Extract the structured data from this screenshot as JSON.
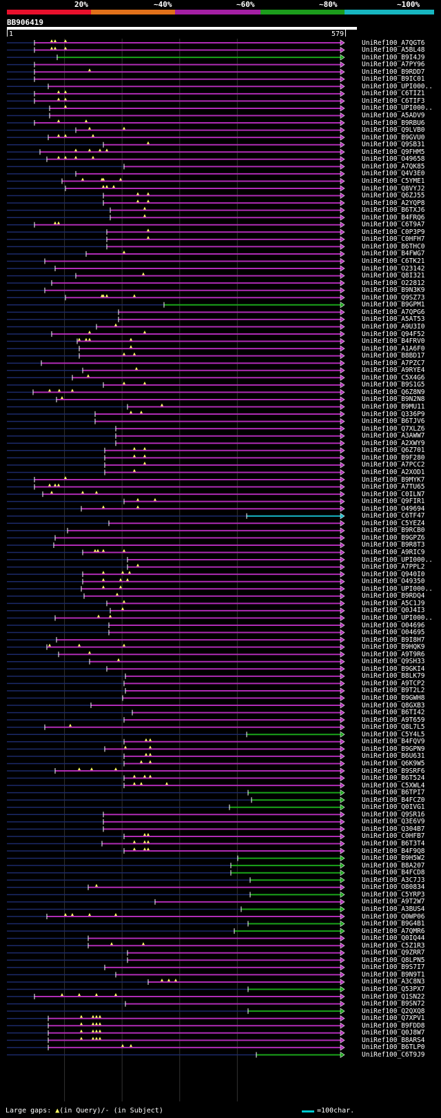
{
  "legend": {
    "labels": [
      "20%",
      "~40%",
      "~60%",
      "~80%",
      "~100%"
    ],
    "colors": [
      "#e8102c",
      "#e0701a",
      "#a31fa3",
      "#1c9c1c",
      "#17b6c0"
    ]
  },
  "query": {
    "title": "BB906419",
    "start_label": "1",
    "end_label": "579",
    "length": 579
  },
  "colors": {
    "magenta": "#b02cb6",
    "green": "#1aa51a",
    "cyan": "#18b8c8",
    "navy": "#1c2a6a",
    "gap": "#ffff66"
  },
  "hits": [
    {
      "id": "UniRef100_A7QGT6",
      "start": 50,
      "color": "magenta",
      "gaps": [
        75,
        80,
        95
      ]
    },
    {
      "id": "UniRef100_A5BL48",
      "start": 50,
      "color": "magenta",
      "gaps": [
        75,
        80,
        95
      ]
    },
    {
      "id": "UniRef100_B9I4J9",
      "start": 83,
      "color": "green",
      "gaps": []
    },
    {
      "id": "UniRef100_A7PY96",
      "start": 50,
      "color": "magenta",
      "gaps": []
    },
    {
      "id": "UniRef100_B9RDD7",
      "start": 50,
      "color": "magenta",
      "gaps": [
        130
      ]
    },
    {
      "id": "UniRef100_B9IC01",
      "start": 50,
      "color": "magenta",
      "gaps": []
    },
    {
      "id": "UniRef100_UPI000..",
      "start": 70,
      "color": "magenta",
      "gaps": []
    },
    {
      "id": "UniRef100_C6TIZ1",
      "start": 50,
      "color": "magenta",
      "gaps": [
        85,
        95
      ]
    },
    {
      "id": "UniRef100_C6TIF3",
      "start": 50,
      "color": "magenta",
      "gaps": [
        85,
        95
      ]
    },
    {
      "id": "UniRef100_UPI000..",
      "start": 72,
      "color": "magenta",
      "gaps": [
        95
      ]
    },
    {
      "id": "UniRef100_A5ADV9",
      "start": 72,
      "color": "magenta",
      "gaps": []
    },
    {
      "id": "UniRef100_B9RBU6",
      "start": 50,
      "color": "magenta",
      "gaps": [
        85,
        125
      ]
    },
    {
      "id": "UniRef100_Q9LVB0",
      "start": 110,
      "color": "magenta",
      "gaps": [
        130,
        180
      ]
    },
    {
      "id": "UniRef100_B9GVU0",
      "start": 70,
      "color": "magenta",
      "gaps": [
        85,
        95,
        135
      ]
    },
    {
      "id": "UniRef100_Q9SB31",
      "start": 150,
      "color": "magenta",
      "gaps": [
        215
      ]
    },
    {
      "id": "UniRef100_Q9FHM5",
      "start": 58,
      "color": "magenta",
      "gaps": [
        110,
        130,
        145,
        155
      ]
    },
    {
      "id": "UniRef100_O49658",
      "start": 68,
      "color": "magenta",
      "gaps": [
        85,
        95,
        110,
        135
      ]
    },
    {
      "id": "UniRef100_A7QK85",
      "start": 180,
      "color": "magenta",
      "gaps": []
    },
    {
      "id": "UniRef100_Q4V3E0",
      "start": 110,
      "color": "magenta",
      "gaps": []
    },
    {
      "id": "UniRef100_C5YME1",
      "start": 90,
      "color": "magenta",
      "gaps": [
        120,
        148,
        150,
        175
      ]
    },
    {
      "id": "UniRef100_Q8VYJ2",
      "start": 95,
      "color": "magenta",
      "gaps": [
        150,
        155,
        165
      ]
    },
    {
      "id": "UniRef100_Q6ZJ55",
      "start": 150,
      "color": "magenta",
      "gaps": [
        200,
        215
      ]
    },
    {
      "id": "UniRef100_A2YQP8",
      "start": 150,
      "color": "magenta",
      "gaps": [
        200,
        215
      ]
    },
    {
      "id": "UniRef100_B6TXJ6",
      "start": 160,
      "color": "magenta",
      "gaps": [
        210
      ]
    },
    {
      "id": "UniRef100_B4FRQ6",
      "start": 160,
      "color": "magenta",
      "gaps": [
        210
      ]
    },
    {
      "id": "UniRef100_C6T9A7",
      "start": 50,
      "color": "magenta",
      "gaps": [
        80,
        85
      ]
    },
    {
      "id": "UniRef100_C0P3P9",
      "start": 155,
      "color": "magenta",
      "gaps": [
        215
      ]
    },
    {
      "id": "UniRef100_C0HFH7",
      "start": 155,
      "color": "magenta",
      "gaps": [
        215
      ]
    },
    {
      "id": "UniRef100_B6THC0",
      "start": 155,
      "color": "magenta",
      "gaps": []
    },
    {
      "id": "UniRef100_B4FWG7",
      "start": 125,
      "color": "magenta",
      "gaps": [
        180
      ]
    },
    {
      "id": "UniRef100_C6TK21",
      "start": 65,
      "color": "magenta",
      "gaps": []
    },
    {
      "id": "UniRef100_O23142",
      "start": 80,
      "color": "magenta",
      "gaps": []
    },
    {
      "id": "UniRef100_Q8I321",
      "start": 110,
      "color": "magenta",
      "gaps": [
        208
      ]
    },
    {
      "id": "UniRef100_O22812",
      "start": 75,
      "color": "magenta",
      "gaps": []
    },
    {
      "id": "UniRef100_B9N3K9",
      "start": 65,
      "color": "magenta",
      "gaps": []
    },
    {
      "id": "UniRef100_Q9SZ73",
      "start": 95,
      "color": "magenta",
      "gaps": [
        148,
        150,
        155,
        195
      ]
    },
    {
      "id": "UniRef100_B9GPM1",
      "start": 238,
      "color": "green",
      "gaps": []
    },
    {
      "id": "UniRef100_A7QPG6",
      "start": 172,
      "color": "magenta",
      "gaps": []
    },
    {
      "id": "UniRef100_A5AT53",
      "start": 172,
      "color": "magenta",
      "gaps": []
    },
    {
      "id": "UniRef100_A9U3I0",
      "start": 140,
      "color": "magenta",
      "gaps": [
        168
      ]
    },
    {
      "id": "UniRef100_Q94F52",
      "start": 75,
      "color": "magenta",
      "gaps": [
        130,
        210
      ]
    },
    {
      "id": "UniRef100_B4FRV0",
      "start": 112,
      "color": "magenta",
      "gaps": [
        115,
        125,
        130,
        190
      ]
    },
    {
      "id": "UniRef100_A1A6F0",
      "start": 115,
      "color": "magenta",
      "gaps": [
        190
      ]
    },
    {
      "id": "UniRef100_B8BD17",
      "start": 115,
      "color": "magenta",
      "gaps": [
        180,
        195
      ]
    },
    {
      "id": "UniRef100_A7PZC7",
      "start": 60,
      "color": "magenta",
      "gaps": []
    },
    {
      "id": "UniRef100_A9RYE4",
      "start": 120,
      "color": "magenta",
      "gaps": [
        198
      ]
    },
    {
      "id": "UniRef100_C5X4G6",
      "start": 105,
      "color": "magenta",
      "gaps": [
        128
      ]
    },
    {
      "id": "UniRef100_B9S1G5",
      "start": 150,
      "color": "magenta",
      "gaps": [
        180,
        210
      ]
    },
    {
      "id": "UniRef100_Q6Z8N9",
      "start": 48,
      "color": "magenta",
      "gaps": [
        72,
        86,
        105
      ]
    },
    {
      "id": "UniRef100_B9N2N8",
      "start": 82,
      "color": "magenta",
      "gaps": [
        90
      ]
    },
    {
      "id": "UniRef100_B9MU11",
      "start": 185,
      "color": "magenta",
      "gaps": [
        235
      ]
    },
    {
      "id": "UniRef100_Q336P9",
      "start": 138,
      "color": "magenta",
      "gaps": [
        190,
        205
      ]
    },
    {
      "id": "UniRef100_B6TJV6",
      "start": 138,
      "color": "magenta",
      "gaps": []
    },
    {
      "id": "UniRef100_Q7XLZ6",
      "start": 168,
      "color": "magenta",
      "gaps": []
    },
    {
      "id": "UniRef100_A3AWW7",
      "start": 168,
      "color": "magenta",
      "gaps": []
    },
    {
      "id": "UniRef100_A2XWY9",
      "start": 168,
      "color": "magenta",
      "gaps": []
    },
    {
      "id": "UniRef100_Q6Z701",
      "start": 152,
      "color": "magenta",
      "gaps": [
        195,
        210
      ]
    },
    {
      "id": "UniRef100_B9F280",
      "start": 152,
      "color": "magenta",
      "gaps": [
        195,
        210
      ]
    },
    {
      "id": "UniRef100_A7PCC2",
      "start": 152,
      "color": "magenta",
      "gaps": [
        210
      ]
    },
    {
      "id": "UniRef100_A2XOD1",
      "start": 152,
      "color": "magenta",
      "gaps": [
        195
      ]
    },
    {
      "id": "UniRef100_B9MYK7",
      "start": 50,
      "color": "magenta",
      "gaps": [
        95
      ]
    },
    {
      "id": "UniRef100_A7TU65",
      "start": 50,
      "color": "magenta",
      "gaps": [
        72,
        80,
        85
      ]
    },
    {
      "id": "UniRef100_C0ILN7",
      "start": 62,
      "color": "magenta",
      "gaps": [
        75,
        120,
        140
      ]
    },
    {
      "id": "UniRef100_Q9FIR1",
      "start": 180,
      "color": "magenta",
      "gaps": [
        200,
        225
      ]
    },
    {
      "id": "UniRef100_O49694",
      "start": 118,
      "color": "magenta",
      "gaps": [
        150,
        200
      ]
    },
    {
      "id": "UniRef100_C6TF47",
      "start": 358,
      "color": "cyan",
      "gaps": []
    },
    {
      "id": "UniRef100_C5YEZ4",
      "start": 158,
      "color": "magenta",
      "gaps": []
    },
    {
      "id": "UniRef100_B9RCB0",
      "start": 98,
      "color": "magenta",
      "gaps": []
    },
    {
      "id": "UniRef100_B9GPZ6",
      "start": 80,
      "color": "magenta",
      "gaps": []
    },
    {
      "id": "UniRef100_B9R8T3",
      "start": 78,
      "color": "magenta",
      "gaps": []
    },
    {
      "id": "UniRef100_A9RIC9",
      "start": 120,
      "color": "magenta",
      "gaps": [
        138,
        142,
        150,
        180
      ]
    },
    {
      "id": "UniRef100_UPI000..",
      "start": 185,
      "color": "magenta",
      "gaps": []
    },
    {
      "id": "UniRef100_A7PPL2",
      "start": 185,
      "color": "magenta",
      "gaps": [
        200
      ]
    },
    {
      "id": "UniRef100_Q940I0",
      "start": 120,
      "color": "magenta",
      "gaps": [
        150,
        178,
        188
      ]
    },
    {
      "id": "UniRef100_O49350",
      "start": 120,
      "color": "magenta",
      "gaps": [
        150,
        175,
        185
      ]
    },
    {
      "id": "UniRef100_UPI000..",
      "start": 118,
      "color": "magenta",
      "gaps": [
        150,
        175
      ]
    },
    {
      "id": "UniRef100_B9RDQ4",
      "start": 122,
      "color": "magenta",
      "gaps": [
        170
      ]
    },
    {
      "id": "UniRef100_A5C1J9",
      "start": 155,
      "color": "magenta",
      "gaps": [
        180
      ]
    },
    {
      "id": "UniRef100_Q0J4I3",
      "start": 160,
      "color": "magenta",
      "gaps": [
        178
      ]
    },
    {
      "id": "UniRef100_UPI000..",
      "start": 80,
      "color": "magenta",
      "gaps": [
        143,
        160
      ]
    },
    {
      "id": "UniRef100_O04696",
      "start": 158,
      "color": "magenta",
      "gaps": []
    },
    {
      "id": "UniRef100_O04695",
      "start": 158,
      "color": "magenta",
      "gaps": []
    },
    {
      "id": "UniRef100_B9I8H7",
      "start": 82,
      "color": "magenta",
      "gaps": []
    },
    {
      "id": "UniRef100_B9HQK9",
      "start": 68,
      "color": "magenta",
      "gaps": [
        72,
        115,
        180
      ]
    },
    {
      "id": "UniRef100_A9T9R6",
      "start": 85,
      "color": "magenta",
      "gaps": [
        130
      ]
    },
    {
      "id": "UniRef100_Q9SH33",
      "start": 130,
      "color": "magenta",
      "gaps": [
        172
      ]
    },
    {
      "id": "UniRef100_B9GKI4",
      "start": 155,
      "color": "magenta",
      "gaps": []
    },
    {
      "id": "UniRef100_B8LK79",
      "start": 182,
      "color": "magenta",
      "gaps": []
    },
    {
      "id": "UniRef100_A9TCP2",
      "start": 180,
      "color": "magenta",
      "gaps": []
    },
    {
      "id": "UniRef100_B9T2L2",
      "start": 182,
      "color": "magenta",
      "gaps": []
    },
    {
      "id": "UniRef100_B9GWH8",
      "start": 178,
      "color": "magenta",
      "gaps": []
    },
    {
      "id": "UniRef100_Q8GXB3",
      "start": 132,
      "color": "magenta",
      "gaps": []
    },
    {
      "id": "UniRef100_B6TI42",
      "start": 192,
      "color": "magenta",
      "gaps": []
    },
    {
      "id": "UniRef100_A9T659",
      "start": 180,
      "color": "magenta",
      "gaps": []
    },
    {
      "id": "UniRef100_Q8L7L5",
      "start": 65,
      "color": "magenta",
      "gaps": [
        102
      ]
    },
    {
      "id": "UniRef100_C5Y4L5",
      "start": 358,
      "color": "green",
      "gaps": []
    },
    {
      "id": "UniRef100_B4FQV9",
      "start": 180,
      "color": "magenta",
      "gaps": [
        212,
        218
      ]
    },
    {
      "id": "UniRef100_B9GPN9",
      "start": 152,
      "color": "magenta",
      "gaps": [
        182,
        218
      ]
    },
    {
      "id": "UniRef100_B6U631",
      "start": 180,
      "color": "magenta",
      "gaps": [
        212,
        218
      ]
    },
    {
      "id": "UniRef100_Q6K9W5",
      "start": 180,
      "color": "magenta",
      "gaps": [
        205,
        218
      ]
    },
    {
      "id": "UniRef100_B9SRF6",
      "start": 80,
      "color": "magenta",
      "gaps": [
        115,
        133,
        168
      ]
    },
    {
      "id": "UniRef100_B6T524",
      "start": 180,
      "color": "magenta",
      "gaps": [
        195,
        210,
        218
      ]
    },
    {
      "id": "UniRef100_C5XWL4",
      "start": 180,
      "color": "magenta",
      "gaps": [
        195,
        205,
        242
      ]
    },
    {
      "id": "UniRef100_B6TPI7",
      "start": 360,
      "color": "green",
      "gaps": []
    },
    {
      "id": "UniRef100_B4FCZ0",
      "start": 365,
      "color": "green",
      "gaps": []
    },
    {
      "id": "UniRef100_Q0IVG1",
      "start": 333,
      "color": "green",
      "gaps": []
    },
    {
      "id": "UniRef100_Q9SR16",
      "start": 150,
      "color": "magenta",
      "gaps": []
    },
    {
      "id": "UniRef100_Q3E6V9",
      "start": 150,
      "color": "magenta",
      "gaps": []
    },
    {
      "id": "UniRef100_Q304B7",
      "start": 150,
      "color": "magenta",
      "gaps": []
    },
    {
      "id": "UniRef100_C0HFB7",
      "start": 180,
      "color": "magenta",
      "gaps": [
        210,
        215
      ]
    },
    {
      "id": "UniRef100_B6T3T4",
      "start": 148,
      "color": "magenta",
      "gaps": [
        195,
        210,
        215
      ]
    },
    {
      "id": "UniRef100_B4F9Q8",
      "start": 180,
      "color": "magenta",
      "gaps": [
        195,
        210,
        215
      ]
    },
    {
      "id": "UniRef100_B9H5W2",
      "start": 345,
      "color": "green",
      "gaps": []
    },
    {
      "id": "UniRef100_B8A207",
      "start": 335,
      "color": "green",
      "gaps": []
    },
    {
      "id": "UniRef100_B4FCD8",
      "start": 335,
      "color": "green",
      "gaps": []
    },
    {
      "id": "UniRef100_A3C7J3",
      "start": 363,
      "color": "green",
      "gaps": []
    },
    {
      "id": "UniRef100_O80834",
      "start": 128,
      "color": "magenta",
      "gaps": [
        140
      ]
    },
    {
      "id": "UniRef100_C5YRP3",
      "start": 363,
      "color": "green",
      "gaps": []
    },
    {
      "id": "UniRef100_A9T2W7",
      "start": 225,
      "color": "magenta",
      "gaps": []
    },
    {
      "id": "UniRef100_A3BUS4",
      "start": 350,
      "color": "green",
      "gaps": []
    },
    {
      "id": "UniRef100_Q0WP06",
      "start": 68,
      "color": "magenta",
      "gaps": [
        95,
        105,
        130,
        168
      ]
    },
    {
      "id": "UniRef100_B9G4B1",
      "start": 360,
      "color": "green",
      "gaps": []
    },
    {
      "id": "UniRef100_A7QMR6",
      "start": 340,
      "color": "green",
      "gaps": []
    },
    {
      "id": "UniRef100_Q0IQ44",
      "start": 128,
      "color": "magenta",
      "gaps": []
    },
    {
      "id": "UniRef100_C5Z1R3",
      "start": 128,
      "color": "magenta",
      "gaps": [
        162,
        208
      ]
    },
    {
      "id": "UniRef100_Q9ZRR7",
      "start": 185,
      "color": "magenta",
      "gaps": []
    },
    {
      "id": "UniRef100_Q8LPN5",
      "start": 185,
      "color": "magenta",
      "gaps": []
    },
    {
      "id": "UniRef100_B9S7I7",
      "start": 152,
      "color": "magenta",
      "gaps": []
    },
    {
      "id": "UniRef100_B9N9T1",
      "start": 168,
      "color": "magenta",
      "gaps": []
    },
    {
      "id": "UniRef100_A3C8N3",
      "start": 215,
      "color": "magenta",
      "gaps": [
        235,
        245,
        255
      ]
    },
    {
      "id": "UniRef100_Q53PX7",
      "start": 360,
      "color": "green",
      "gaps": []
    },
    {
      "id": "UniRef100_Q1SN22",
      "start": 50,
      "color": "magenta",
      "gaps": [
        90,
        115,
        140,
        168
      ]
    },
    {
      "id": "UniRef100_B9SN72",
      "start": 182,
      "color": "magenta",
      "gaps": []
    },
    {
      "id": "UniRef100_Q2QXQ8",
      "start": 360,
      "color": "green",
      "gaps": []
    },
    {
      "id": "UniRef100_Q7XPV1",
      "start": 70,
      "color": "magenta",
      "gaps": [
        118,
        135,
        140,
        145
      ]
    },
    {
      "id": "UniRef100_B9FDD8",
      "start": 70,
      "color": "magenta",
      "gaps": [
        118,
        135,
        140,
        145
      ]
    },
    {
      "id": "UniRef100_Q0J8W7",
      "start": 70,
      "color": "magenta",
      "gaps": [
        118,
        135,
        140,
        145
      ]
    },
    {
      "id": "UniRef100_B8ARS4",
      "start": 70,
      "color": "magenta",
      "gaps": [
        118,
        135,
        140,
        145
      ]
    },
    {
      "id": "UniRef100_B6TLP0",
      "start": 70,
      "color": "magenta",
      "gaps": [
        178,
        190
      ]
    },
    {
      "id": "UniRef100_C6T9J9",
      "start": 372,
      "color": "green",
      "gaps": []
    }
  ],
  "footer": {
    "large_gaps_label": "Large gaps:",
    "in_query_label": "(in Query)/",
    "dash_label": "-",
    "in_subject_label": "(in Subject)",
    "scale_label": "=100char."
  }
}
